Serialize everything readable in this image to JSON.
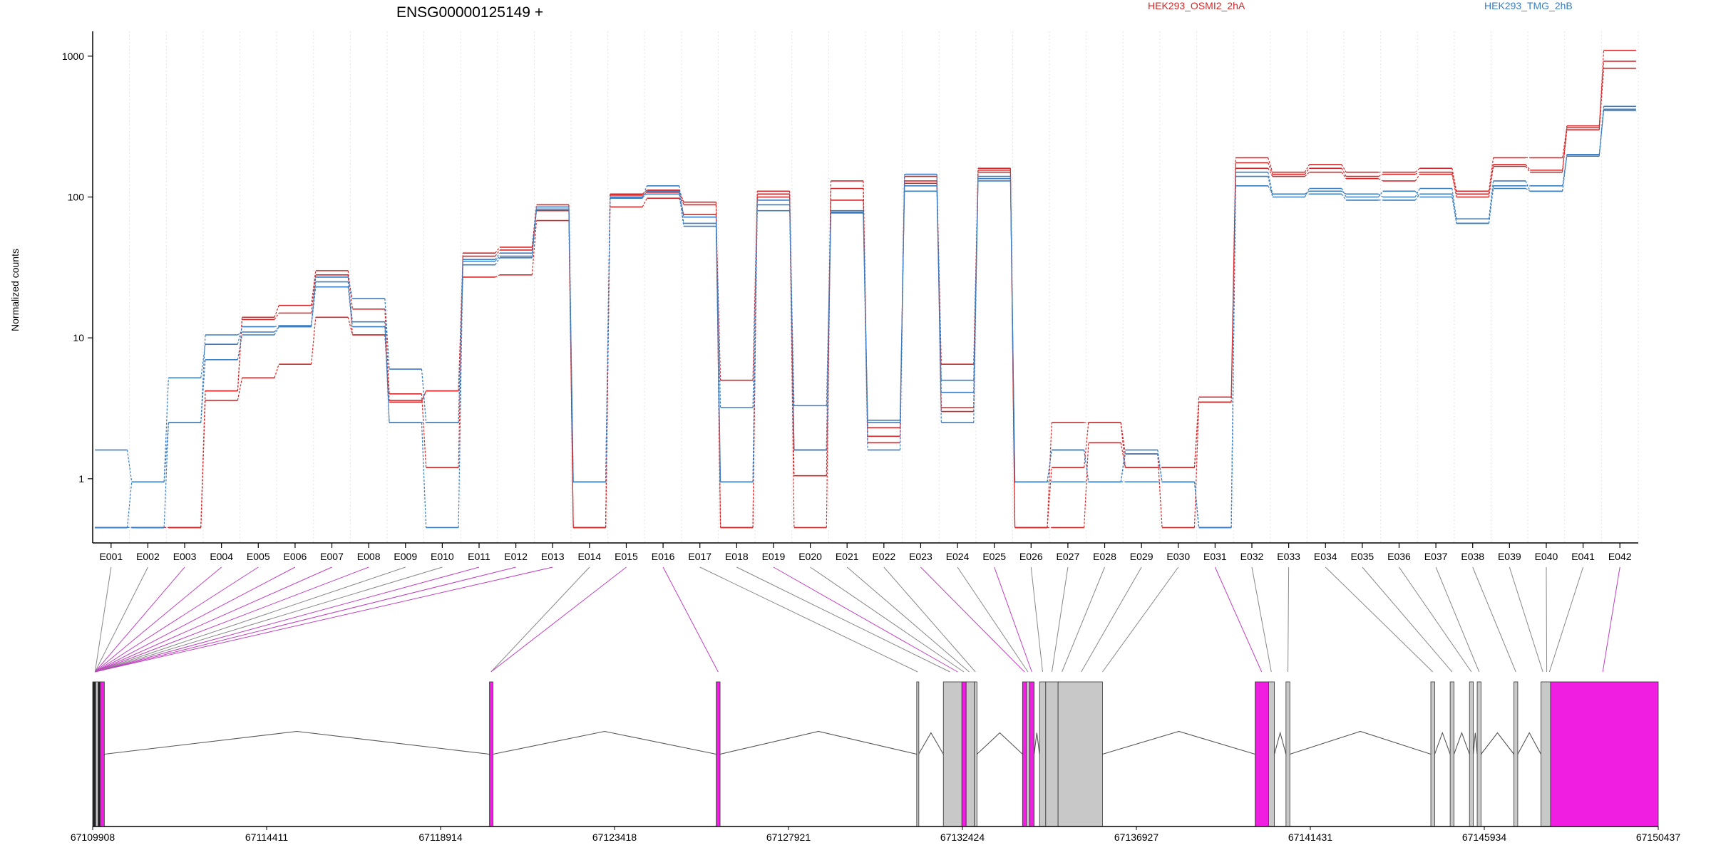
{
  "chart_data": {
    "type": "line",
    "title": "ENSG00000125149 +",
    "ylabel": "Normalized counts",
    "yscale": "log",
    "ylim": [
      0.35,
      1500
    ],
    "yticks": [
      1,
      10,
      100,
      1000
    ],
    "ytick_labels": [
      "1",
      "10",
      "100",
      "1000"
    ],
    "categories": [
      "E001",
      "E002",
      "E003",
      "E004",
      "E005",
      "E006",
      "E007",
      "E008",
      "E009",
      "E010",
      "E011",
      "E012",
      "E013",
      "E014",
      "E015",
      "E016",
      "E017",
      "E018",
      "E019",
      "E020",
      "E021",
      "E022",
      "E023",
      "E024",
      "E025",
      "E026",
      "E027",
      "E028",
      "E029",
      "E030",
      "E031",
      "E032",
      "E033",
      "E034",
      "E035",
      "E036",
      "E037",
      "E038",
      "E039",
      "E040",
      "E041",
      "E042"
    ],
    "groups": [
      {
        "name": "HEK293_OSMI2_2hA",
        "color": "#d62728"
      },
      {
        "name": "HEK293_TMG_2hB",
        "color": "#3a7dc0"
      }
    ],
    "series": [
      {
        "group": 0,
        "values": [
          0.45,
          0.45,
          0.45,
          3.6,
          5.2,
          6.5,
          14.0,
          10.5,
          3.6,
          4.2,
          27,
          28,
          68,
          0.45,
          85,
          98,
          75,
          5.0,
          105,
          1.05,
          95,
          2.3,
          140,
          3.2,
          160,
          0.45,
          1.2,
          2.5,
          1.2,
          1.2,
          3.8,
          190,
          150,
          170,
          150,
          150,
          160,
          110,
          190,
          190,
          310,
          1100
        ]
      },
      {
        "group": 0,
        "values": [
          0.45,
          0.45,
          0.45,
          4.2,
          14.0,
          17.0,
          30.0,
          16.0,
          4.0,
          1.2,
          40,
          44,
          88,
          0.45,
          105,
          112,
          92,
          0.45,
          110,
          1.6,
          130,
          2.0,
          130,
          6.5,
          150,
          0.45,
          2.5,
          2.5,
          1.5,
          0.45,
          3.5,
          160,
          140,
          150,
          135,
          130,
          145,
          100,
          165,
          150,
          300,
          820
        ]
      },
      {
        "group": 0,
        "values": [
          0.45,
          0.45,
          0.45,
          4.2,
          13.5,
          15.0,
          28.0,
          10.5,
          3.5,
          4.2,
          38,
          42,
          80,
          0.45,
          103,
          108,
          88,
          0.45,
          100,
          0.45,
          115,
          1.8,
          125,
          3.0,
          155,
          0.45,
          0.45,
          1.8,
          1.2,
          1.2,
          3.5,
          175,
          145,
          160,
          140,
          145,
          150,
          105,
          170,
          155,
          320,
          920
        ]
      },
      {
        "group": 1,
        "values": [
          1.6,
          0.95,
          2.5,
          10.5,
          11.0,
          12.0,
          27.0,
          19.0,
          6.0,
          2.5,
          36,
          40,
          85,
          0.95,
          100,
          120,
          72,
          0.95,
          95,
          1.6,
          80,
          1.6,
          145,
          2.5,
          140,
          0.95,
          0.95,
          0.95,
          0.95,
          0.95,
          0.45,
          120,
          105,
          110,
          105,
          100,
          115,
          70,
          130,
          110,
          200,
          410
        ]
      },
      {
        "group": 1,
        "values": [
          0.45,
          0.95,
          5.2,
          9.0,
          12.0,
          12.2,
          25.0,
          13.0,
          2.5,
          2.5,
          33,
          37,
          82,
          0.95,
          98,
          110,
          65,
          3.2,
          88,
          3.3,
          77,
          2.6,
          110,
          4.1,
          130,
          0.95,
          1.6,
          0.95,
          1.5,
          0.95,
          0.45,
          140,
          100,
          115,
          100,
          110,
          100,
          65,
          120,
          120,
          195,
          420
        ]
      },
      {
        "group": 1,
        "values": [
          0.45,
          0.45,
          2.5,
          7.0,
          10.5,
          12.0,
          23.0,
          12.0,
          2.5,
          0.45,
          35,
          38,
          82,
          0.95,
          100,
          105,
          62,
          0.95,
          80,
          1.6,
          78,
          2.5,
          120,
          5.0,
          135,
          0.95,
          1.6,
          0.95,
          1.6,
          0.95,
          0.45,
          150,
          105,
          105,
          95,
          95,
          105,
          65,
          115,
          110,
          200,
          440
        ]
      }
    ],
    "genomic_axis": {
      "tick_labels": [
        "67109908",
        "67114411",
        "67118914",
        "67123418",
        "67127921",
        "67132424",
        "67136927",
        "67141431",
        "67145934",
        "67150437"
      ],
      "start": 67109908,
      "end": 67150437
    },
    "exons": [
      {
        "start": 67109908,
        "end": 67109985,
        "color": "#222222"
      },
      {
        "start": 67109985,
        "end": 67110050,
        "color": "#c8c8c8"
      },
      {
        "start": 67110050,
        "end": 67110100,
        "color": "#222222"
      },
      {
        "start": 67110100,
        "end": 67110210,
        "color": "#f01ee0"
      },
      {
        "start": 67120180,
        "end": 67120270,
        "color": "#f01ee0"
      },
      {
        "start": 67126050,
        "end": 67126150,
        "color": "#f01ee0"
      },
      {
        "start": 67131240,
        "end": 67131290,
        "color": "#c8c8c8"
      },
      {
        "start": 67131930,
        "end": 67132410,
        "color": "#c8c8c8"
      },
      {
        "start": 67132410,
        "end": 67132520,
        "color": "#f01ee0"
      },
      {
        "start": 67132520,
        "end": 67132730,
        "color": "#c8c8c8"
      },
      {
        "start": 67132730,
        "end": 67132800,
        "color": "#c8c8c8"
      },
      {
        "start": 67133980,
        "end": 67134080,
        "color": "#f01ee0"
      },
      {
        "start": 67134080,
        "end": 67134160,
        "color": "#c8c8c8"
      },
      {
        "start": 67134160,
        "end": 67134280,
        "color": "#f01ee0"
      },
      {
        "start": 67134420,
        "end": 67134580,
        "color": "#c8c8c8"
      },
      {
        "start": 67134580,
        "end": 67134900,
        "color": "#c8c8c8"
      },
      {
        "start": 67134900,
        "end": 67136050,
        "color": "#c8c8c8"
      },
      {
        "start": 67140000,
        "end": 67140350,
        "color": "#f01ee0"
      },
      {
        "start": 67140350,
        "end": 67140500,
        "color": "#c8c8c8"
      },
      {
        "start": 67140800,
        "end": 67140900,
        "color": "#c8c8c8"
      },
      {
        "start": 67144550,
        "end": 67144650,
        "color": "#c8c8c8"
      },
      {
        "start": 67145050,
        "end": 67145150,
        "color": "#c8c8c8"
      },
      {
        "start": 67145550,
        "end": 67145650,
        "color": "#c8c8c8"
      },
      {
        "start": 67145750,
        "end": 67145850,
        "color": "#c8c8c8"
      },
      {
        "start": 67146700,
        "end": 67146800,
        "color": "#c8c8c8"
      },
      {
        "start": 67147400,
        "end": 67147650,
        "color": "#c8c8c8"
      },
      {
        "start": 67147650,
        "end": 67150437,
        "color": "#f01ee0"
      }
    ],
    "exon_links": [
      {
        "exon": "E001",
        "pos": 67109970,
        "color": "#888888"
      },
      {
        "exon": "E002",
        "pos": 67109970,
        "color": "#888888"
      },
      {
        "exon": "E003",
        "pos": 67109970,
        "color": "#c040c0"
      },
      {
        "exon": "E004",
        "pos": 67109970,
        "color": "#c040c0"
      },
      {
        "exon": "E005",
        "pos": 67109970,
        "color": "#c040c0"
      },
      {
        "exon": "E006",
        "pos": 67109970,
        "color": "#c040c0"
      },
      {
        "exon": "E007",
        "pos": 67109970,
        "color": "#c040c0"
      },
      {
        "exon": "E008",
        "pos": 67109970,
        "color": "#c040c0"
      },
      {
        "exon": "E009",
        "pos": 67109970,
        "color": "#888888"
      },
      {
        "exon": "E010",
        "pos": 67109970,
        "color": "#888888"
      },
      {
        "exon": "E011",
        "pos": 67109970,
        "color": "#c040c0"
      },
      {
        "exon": "E012",
        "pos": 67109970,
        "color": "#c040c0"
      },
      {
        "exon": "E013",
        "pos": 67109970,
        "color": "#c040c0"
      },
      {
        "exon": "E014",
        "pos": 67120220,
        "color": "#888888"
      },
      {
        "exon": "E015",
        "pos": 67120220,
        "color": "#c040c0"
      },
      {
        "exon": "E016",
        "pos": 67126100,
        "color": "#c040c0"
      },
      {
        "exon": "E017",
        "pos": 67131265,
        "color": "#888888"
      },
      {
        "exon": "E018",
        "pos": 67132100,
        "color": "#888888"
      },
      {
        "exon": "E019",
        "pos": 67132300,
        "color": "#c040c0"
      },
      {
        "exon": "E020",
        "pos": 67132460,
        "color": "#888888"
      },
      {
        "exon": "E021",
        "pos": 67132600,
        "color": "#888888"
      },
      {
        "exon": "E022",
        "pos": 67132760,
        "color": "#888888"
      },
      {
        "exon": "E023",
        "pos": 67134030,
        "color": "#c040c0"
      },
      {
        "exon": "E024",
        "pos": 67134120,
        "color": "#888888"
      },
      {
        "exon": "E025",
        "pos": 67134220,
        "color": "#c040c0"
      },
      {
        "exon": "E026",
        "pos": 67134500,
        "color": "#888888"
      },
      {
        "exon": "E027",
        "pos": 67134740,
        "color": "#888888"
      },
      {
        "exon": "E028",
        "pos": 67135000,
        "color": "#888888"
      },
      {
        "exon": "E029",
        "pos": 67135500,
        "color": "#888888"
      },
      {
        "exon": "E030",
        "pos": 67136050,
        "color": "#888888"
      },
      {
        "exon": "E031",
        "pos": 67140170,
        "color": "#c040c0"
      },
      {
        "exon": "E032",
        "pos": 67140420,
        "color": "#888888"
      },
      {
        "exon": "E033",
        "pos": 67140850,
        "color": "#888888"
      },
      {
        "exon": "E034",
        "pos": 67144600,
        "color": "#888888"
      },
      {
        "exon": "E035",
        "pos": 67145100,
        "color": "#888888"
      },
      {
        "exon": "E036",
        "pos": 67145600,
        "color": "#888888"
      },
      {
        "exon": "E037",
        "pos": 67145800,
        "color": "#888888"
      },
      {
        "exon": "E038",
        "pos": 67146750,
        "color": "#888888"
      },
      {
        "exon": "E039",
        "pos": 67147450,
        "color": "#888888"
      },
      {
        "exon": "E040",
        "pos": 67147550,
        "color": "#888888"
      },
      {
        "exon": "E041",
        "pos": 67147620,
        "color": "#888888"
      },
      {
        "exon": "E042",
        "pos": 67149000,
        "color": "#c040c0"
      }
    ]
  }
}
